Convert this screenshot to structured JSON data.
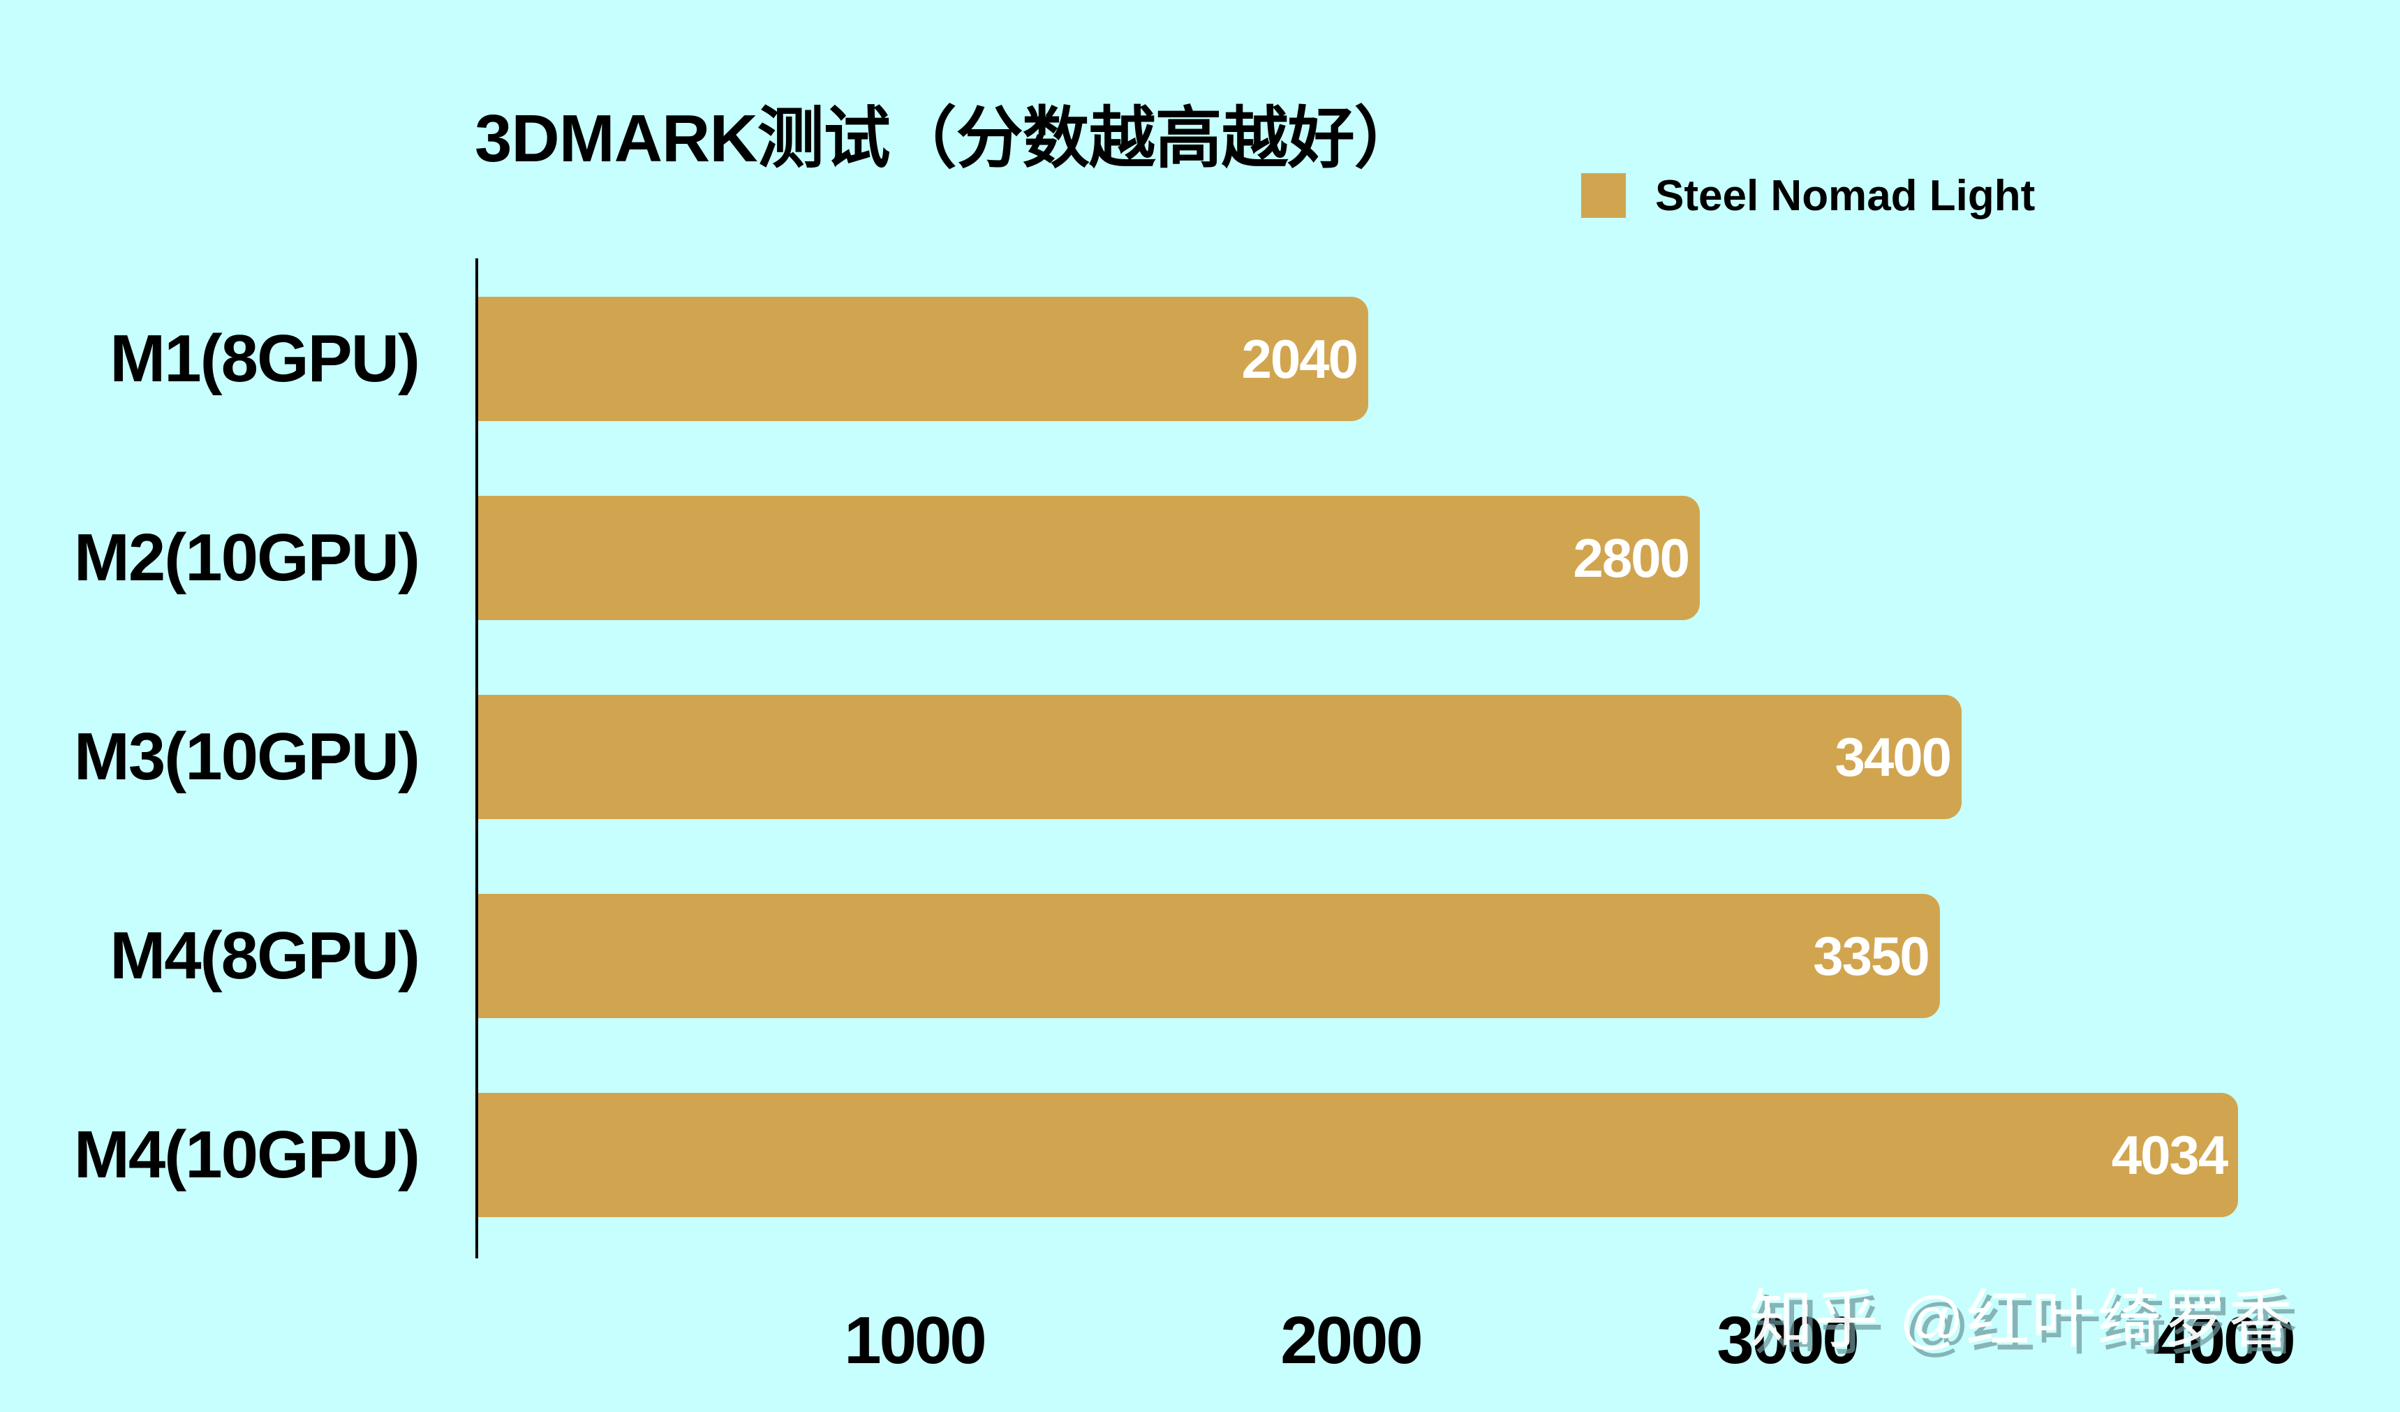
{
  "colors": {
    "background": "#c6fffd",
    "bar": "#d1a54f",
    "bar_value_text": "#ffffff",
    "axis": "#000000",
    "text": "#000000"
  },
  "title": "3DMARK测试（分数越高越好）",
  "legend": {
    "entries": [
      {
        "label": "Steel Nomad Light",
        "color": "#d1a54f"
      }
    ]
  },
  "watermark": "知乎 @红叶绮罗香",
  "chart_data": {
    "type": "bar",
    "orientation": "horizontal",
    "title": "3DMARK测试（分数越高越好）",
    "xlabel": "",
    "ylabel": "",
    "categories": [
      "M1(8GPU)",
      "M2(10GPU)",
      "M3(10GPU)",
      "M4(8GPU)",
      "M4(10GPU)"
    ],
    "series": [
      {
        "name": "Steel Nomad Light",
        "color": "#d1a54f",
        "values": [
          2040,
          2800,
          3400,
          3350,
          4034
        ]
      }
    ],
    "value_labels": [
      "2040",
      "2800",
      "3400",
      "3350",
      "4034"
    ],
    "x_ticks": [
      "1000",
      "2000",
      "3000",
      "4000"
    ],
    "xlim": [
      0,
      4100
    ],
    "grid": false,
    "legend_position": "top-right"
  }
}
